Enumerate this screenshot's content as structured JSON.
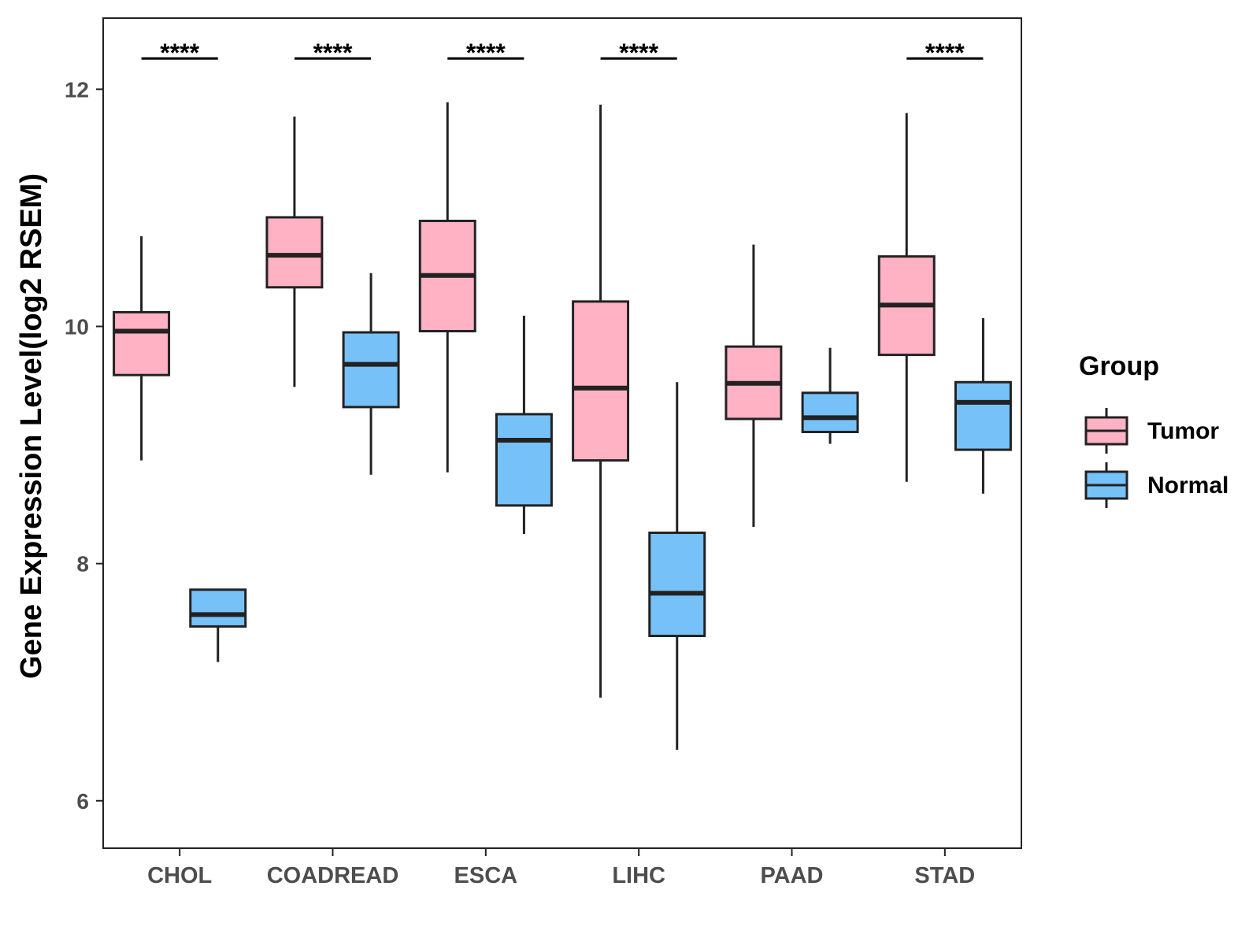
{
  "chart_data": {
    "type": "boxplot",
    "title": "",
    "xlabel": "",
    "ylabel": "Gene Expression Level(log2 RSEM)",
    "ylim": [
      5.6,
      12.6
    ],
    "yticks": [
      6,
      8,
      10,
      12
    ],
    "ytick_labels": [
      "6",
      "8",
      "10",
      "12"
    ],
    "categories": [
      "CHOL",
      "COADREAD",
      "ESCA",
      "LIHC",
      "PAAD",
      "STAD"
    ],
    "legend": {
      "title": "Group",
      "position": "right",
      "entries": [
        {
          "name": "Tumor",
          "color": "#FFB2C3"
        },
        {
          "name": "Normal",
          "color": "#77C1F9"
        }
      ]
    },
    "series": [
      {
        "name": "Tumor",
        "color": "#FFB2C3",
        "boxes": [
          {
            "min": 8.87,
            "q1": 9.59,
            "median": 9.96,
            "q3": 10.12,
            "max": 10.76
          },
          {
            "min": 9.49,
            "q1": 10.33,
            "median": 10.6,
            "q3": 10.92,
            "max": 11.77
          },
          {
            "min": 8.77,
            "q1": 9.96,
            "median": 10.43,
            "q3": 10.89,
            "max": 11.89
          },
          {
            "min": 6.87,
            "q1": 8.87,
            "median": 9.48,
            "q3": 10.21,
            "max": 11.87
          },
          {
            "min": 8.31,
            "q1": 9.22,
            "median": 9.52,
            "q3": 9.83,
            "max": 10.69
          },
          {
            "min": 8.69,
            "q1": 9.76,
            "median": 10.18,
            "q3": 10.59,
            "max": 11.8
          }
        ]
      },
      {
        "name": "Normal",
        "color": "#77C1F9",
        "boxes": [
          {
            "min": 7.17,
            "q1": 7.47,
            "median": 7.57,
            "q3": 7.78,
            "max": 7.78
          },
          {
            "min": 8.75,
            "q1": 9.32,
            "median": 9.68,
            "q3": 9.95,
            "max": 10.45
          },
          {
            "min": 8.25,
            "q1": 8.49,
            "median": 9.04,
            "q3": 9.26,
            "max": 10.09
          },
          {
            "min": 6.43,
            "q1": 7.39,
            "median": 7.75,
            "q3": 8.26,
            "max": 9.53
          },
          {
            "min": 9.01,
            "q1": 9.11,
            "median": 9.23,
            "q3": 9.44,
            "max": 9.82
          },
          {
            "min": 8.59,
            "q1": 8.96,
            "median": 9.36,
            "q3": 9.53,
            "max": 10.07
          }
        ]
      }
    ],
    "significance": [
      {
        "category": "CHOL",
        "label": "****"
      },
      {
        "category": "COADREAD",
        "label": "****"
      },
      {
        "category": "ESCA",
        "label": "****"
      },
      {
        "category": "LIHC",
        "label": "****"
      },
      {
        "category": "PAAD",
        "label": ""
      },
      {
        "category": "STAD",
        "label": "****"
      }
    ],
    "significance_level": 12.26,
    "grid": false
  }
}
